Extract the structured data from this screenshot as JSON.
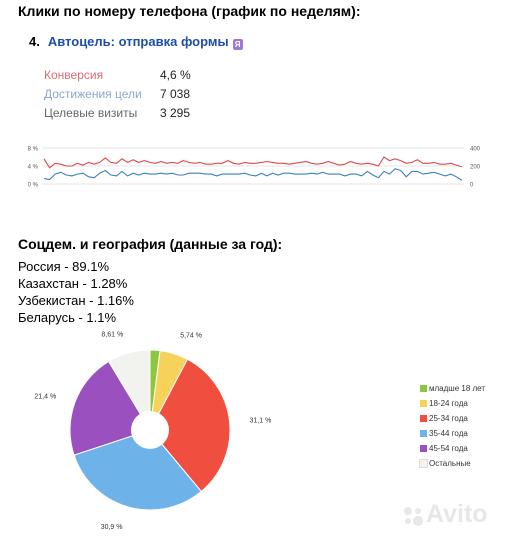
{
  "title_weekly": "Клики по номеру телефона (график по неделям):",
  "goal": {
    "number": "4.",
    "name": "Автоцель: отправка формы",
    "badge": "Я"
  },
  "stats": [
    {
      "label": "Конверсия",
      "value": "4,6 %",
      "color": "#d96b74"
    },
    {
      "label": "Достижения цели",
      "value": "7 038",
      "color": "#8da6cf"
    },
    {
      "label": "Целевые визиты",
      "value": "3 295",
      "color": "#666666"
    }
  ],
  "title_geo": "Соцдем. и география (данные за год):",
  "geo": [
    "Россия - 89.1%",
    "Казахстан - 1.28%",
    "Узбекистан - 1.16%",
    "Беларусь - 1.1%"
  ],
  "watermark": "Avito",
  "chart_data": [
    {
      "type": "line",
      "left_ticks": [
        "8 %",
        "4 %",
        "0 %"
      ],
      "right_ticks": [
        "400",
        "200",
        "0"
      ],
      "ylim_left": [
        0,
        8
      ],
      "ylim_right": [
        0,
        400
      ],
      "grid": true,
      "series": [
        {
          "color": "#e0474c",
          "axis": "left",
          "values": [
            5.6,
            3.6,
            4.6,
            4.4,
            4.0,
            4.0,
            4.6,
            4.2,
            4.8,
            4.4,
            4.8,
            5.8,
            4.8,
            4.6,
            5.6,
            4.8,
            5.4,
            4.8,
            5.2,
            4.8,
            4.6,
            5.0,
            4.6,
            4.8,
            4.6,
            5.2,
            4.8,
            4.6,
            4.8,
            4.4,
            4.4,
            4.6,
            4.6,
            5.2,
            4.6,
            4.4,
            4.8,
            4.6,
            4.6,
            4.8,
            5.0,
            4.8,
            4.6,
            4.6,
            4.4,
            4.6,
            4.8,
            5.0,
            4.6,
            4.4,
            4.6,
            5.0,
            4.6,
            4.2,
            4.4,
            5.0,
            4.6,
            4.4,
            4.6,
            4.4,
            4.0,
            6.0,
            5.2,
            5.6,
            5.2,
            4.6,
            4.8,
            5.4,
            4.6,
            4.6,
            4.8,
            4.4,
            4.4,
            4.6,
            4.2,
            3.8
          ]
        },
        {
          "color": "#3b7fc4",
          "axis": "right",
          "values": [
            60,
            50,
            110,
            130,
            100,
            90,
            110,
            120,
            80,
            70,
            120,
            150,
            100,
            90,
            140,
            90,
            120,
            100,
            120,
            110,
            110,
            120,
            110,
            120,
            100,
            100,
            120,
            120,
            120,
            110,
            110,
            90,
            110,
            110,
            110,
            110,
            120,
            100,
            90,
            120,
            90,
            120,
            100,
            120,
            120,
            110,
            110,
            110,
            120,
            110,
            130,
            110,
            110,
            110,
            90,
            110,
            110,
            90,
            140,
            100,
            70,
            140,
            110,
            170,
            150,
            80,
            140,
            140,
            110,
            120,
            130,
            110,
            90,
            110,
            80,
            40
          ]
        }
      ]
    },
    {
      "type": "pie",
      "slices": [
        {
          "name": "младше 18 лет",
          "value": 2.0,
          "color": "#8dc63f"
        },
        {
          "name": "18-24 года",
          "value": 5.74,
          "color": "#f7d25a"
        },
        {
          "name": "25-34 года",
          "value": 31.1,
          "color": "#f04f3f"
        },
        {
          "name": "35-44 года",
          "value": 30.9,
          "color": "#6db3ea"
        },
        {
          "name": "45-54 года",
          "value": 21.4,
          "color": "#9b50c0"
        },
        {
          "name": "Остальные",
          "value": 8.61,
          "color": "#f2f2ee"
        }
      ],
      "data_labels": [
        "",
        "5,74 %",
        "31,1 %",
        "30,9 %",
        "21,4 %",
        "8,61 %"
      ]
    }
  ]
}
